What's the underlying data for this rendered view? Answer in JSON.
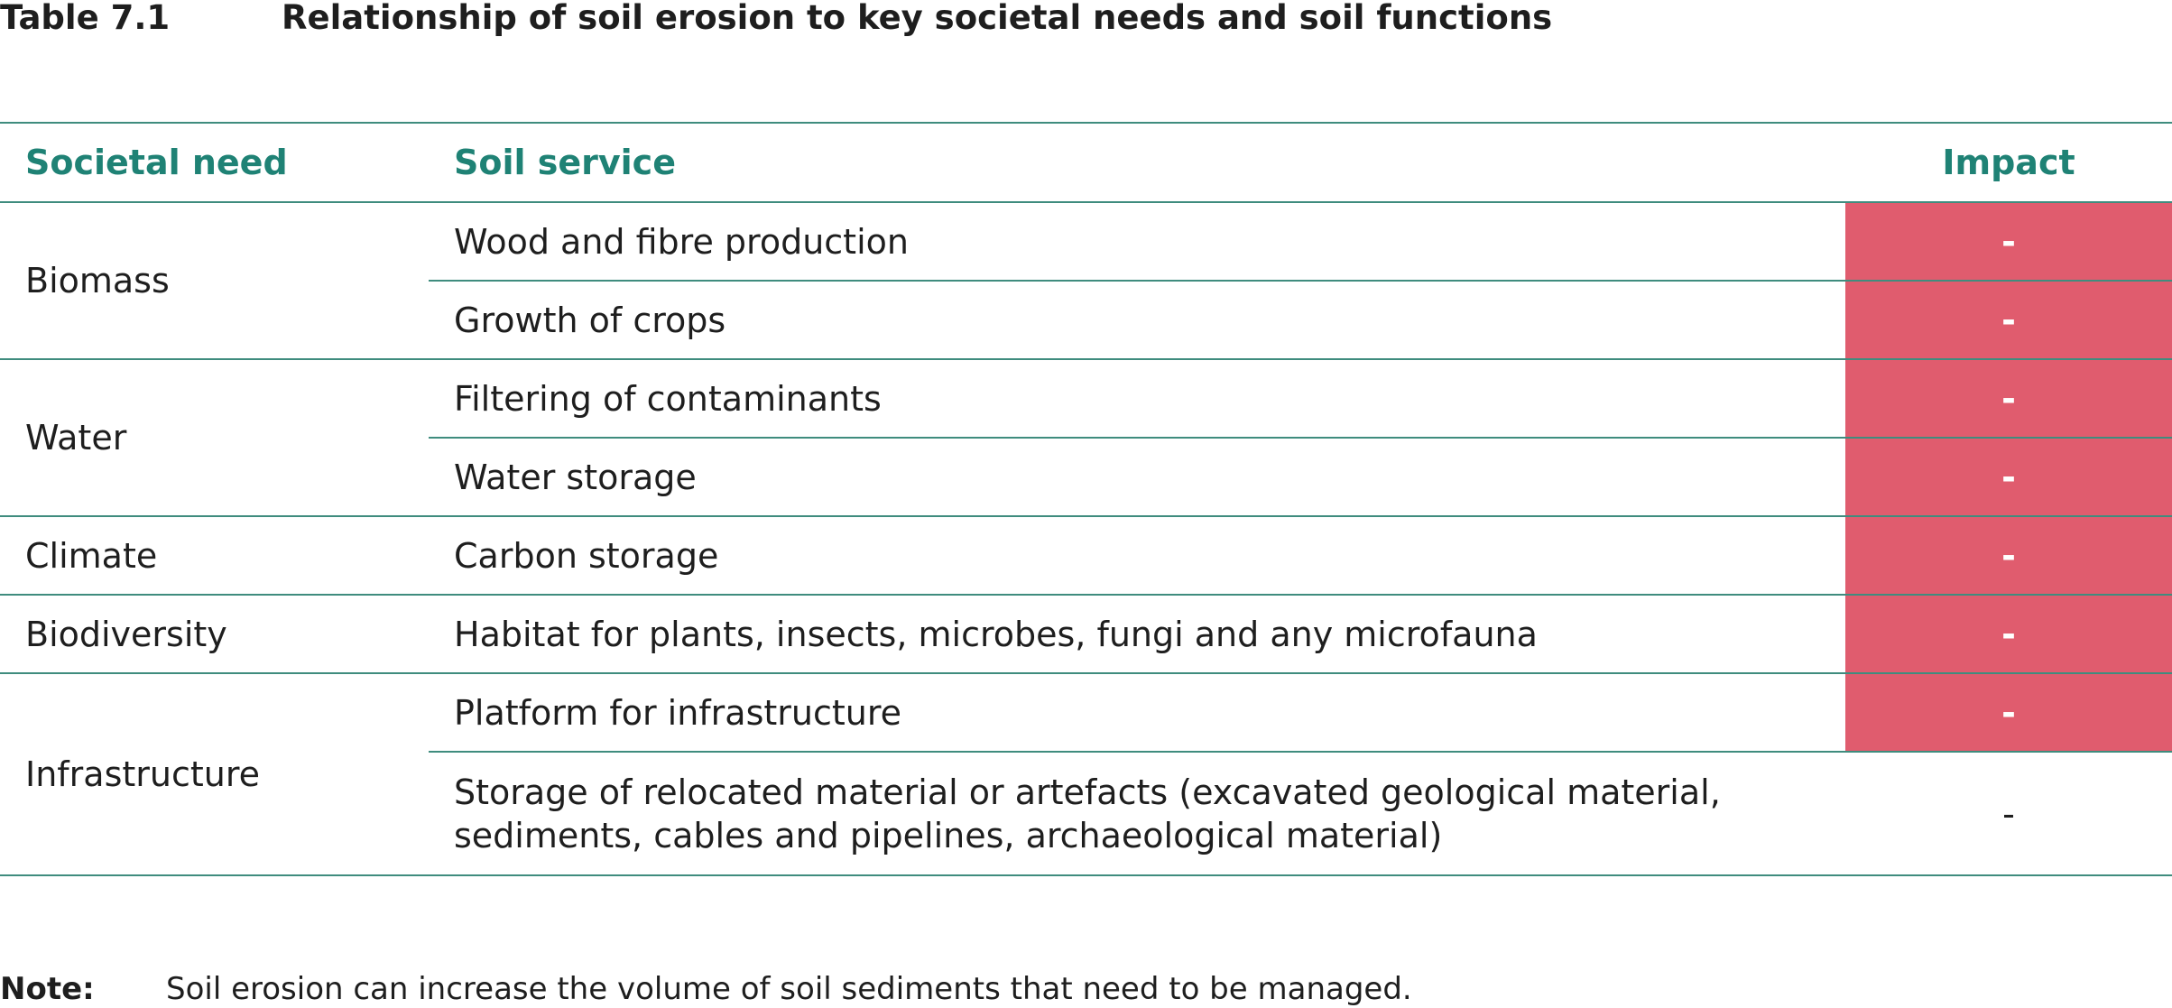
{
  "title": {
    "number": "Table 7.1",
    "text": "Relationship of soil erosion to key societal needs and soil functions"
  },
  "table": {
    "headers": {
      "need": "Societal need",
      "service": "Soil service",
      "impact": "Impact"
    },
    "groups": [
      {
        "need": "Biomass",
        "rows": [
          {
            "service": "Wood and fibre production",
            "impact": "-",
            "impact_color": "#e05c6e"
          },
          {
            "service": "Growth of crops",
            "impact": "-",
            "impact_color": "#e05c6e"
          }
        ]
      },
      {
        "need": "Water",
        "rows": [
          {
            "service": "Filtering of contaminants",
            "impact": "-",
            "impact_color": "#e05c6e"
          },
          {
            "service": "Water storage",
            "impact": "-",
            "impact_color": "#e05c6e"
          }
        ]
      },
      {
        "need": "Climate",
        "rows": [
          {
            "service": "Carbon storage",
            "impact": "-",
            "impact_color": "#e05c6e"
          }
        ]
      },
      {
        "need": "Biodiversity",
        "rows": [
          {
            "service": "Habitat for plants, insects, microbes, fungi and any microfauna",
            "impact": "-",
            "impact_color": "#e05c6e"
          }
        ]
      },
      {
        "need": "Infrastructure",
        "rows": [
          {
            "service": "Platform for infrastructure",
            "impact": "-",
            "impact_color": "#e05c6e"
          },
          {
            "service": "Storage of relocated material or artefacts (excavated geological material, sediments, cables and pipelines, archaeological material)",
            "impact": "-",
            "impact_color": "#ffffff"
          }
        ]
      }
    ]
  },
  "note": {
    "label": "Note:",
    "text": "Soil erosion can increase the volume of soil sediments that need to be managed."
  },
  "colors": {
    "header_text": "#1f8275",
    "rule": "#3f8c7e",
    "negative_impact": "#e05c6e"
  }
}
